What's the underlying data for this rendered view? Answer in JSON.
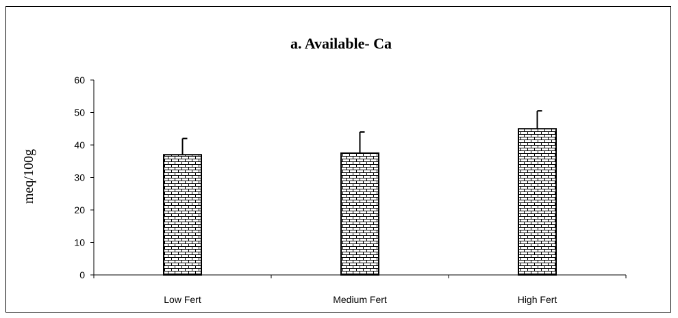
{
  "chart_data": {
    "type": "bar",
    "title": "a. Available- Ca",
    "xlabel": "",
    "ylabel": "meq/100g",
    "categories": [
      "Low Fert",
      "Medium Fert",
      "High Fert"
    ],
    "values": [
      37,
      37.5,
      45
    ],
    "error_upper": [
      42,
      44,
      50.5
    ],
    "ylim": [
      0,
      60
    ],
    "yticks": [
      0,
      10,
      20,
      30,
      40,
      50,
      60
    ],
    "grid": false,
    "legend": "none",
    "bar_fill": "brick pattern",
    "colors": {
      "bar_stroke": "#000000",
      "pattern": "#000000",
      "background": "#ffffff"
    }
  }
}
